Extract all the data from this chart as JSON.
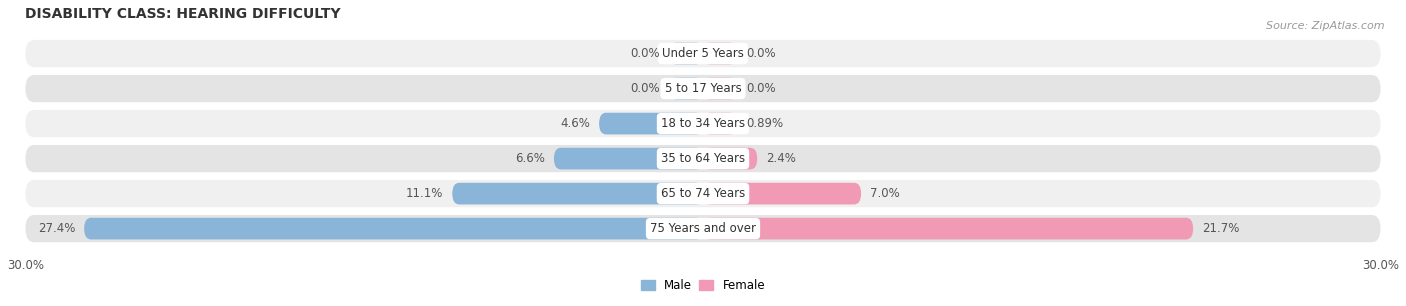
{
  "title": "DISABILITY CLASS: HEARING DIFFICULTY",
  "source": "Source: ZipAtlas.com",
  "categories": [
    "Under 5 Years",
    "5 to 17 Years",
    "18 to 34 Years",
    "35 to 64 Years",
    "65 to 74 Years",
    "75 Years and over"
  ],
  "male_values": [
    0.0,
    0.0,
    4.6,
    6.6,
    11.1,
    27.4
  ],
  "female_values": [
    0.0,
    0.0,
    0.89,
    2.4,
    7.0,
    21.7
  ],
  "male_color": "#8ab4d8",
  "female_color": "#f09ab5",
  "row_light": "#f0f0f0",
  "row_dark": "#e4e4e4",
  "xlim": 30.0,
  "min_bar": 1.5,
  "legend_male": "Male",
  "legend_female": "Female",
  "title_fontsize": 10,
  "label_fontsize": 8.5,
  "category_fontsize": 8.5,
  "source_fontsize": 8,
  "value_color": "#555555",
  "title_color": "#333333",
  "category_color": "#333333"
}
